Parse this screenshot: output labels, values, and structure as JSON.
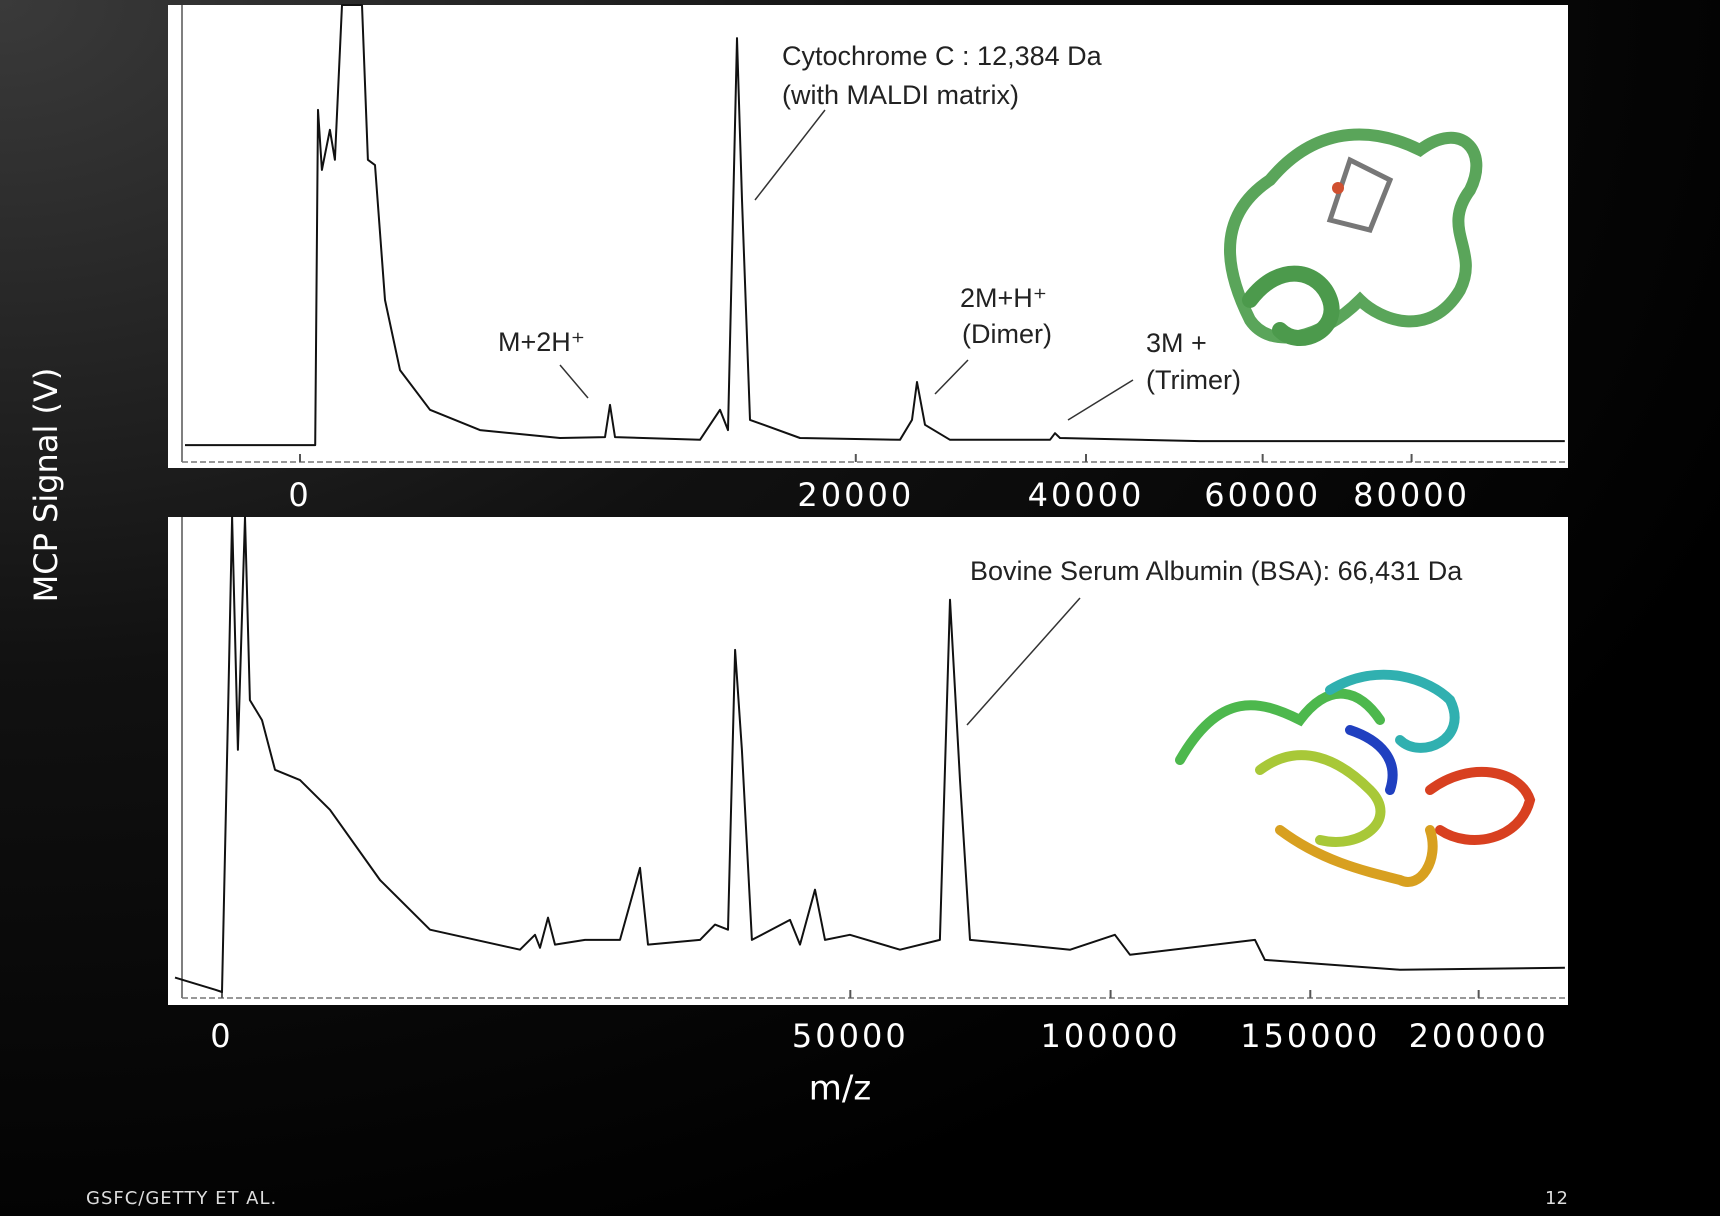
{
  "slide": {
    "ylabel": "MCP Signal (V)",
    "xlabel": "m/z",
    "footer": "GSFC/GETTY ET AL.",
    "page_number": "12"
  },
  "chart_data": [
    {
      "type": "line",
      "xscale": "sqrt",
      "color": "#111111",
      "annotations": [
        "Cytochrome C :  12,384 Da",
        "(with MALDI matrix)",
        "M+2H⁺",
        "2M+H⁺",
        "(Dimer)",
        "3M +",
        "(Trimer)"
      ],
      "xlim": [
        -1128,
        104100
      ],
      "xticks": [
        0,
        20000,
        40000,
        60000,
        80000
      ],
      "ylim": [
        -0.05,
        1
      ],
      "x": [
        -856,
        0,
        15,
        21,
        31,
        58,
        79,
        114,
        196,
        249,
        299,
        364,
        468,
        647,
        1094,
        2098,
        4377,
        6022,
        6222,
        6424,
        10359,
        11421,
        11861,
        12362,
        12647,
        13110,
        16187,
        23309,
        24250,
        24652,
        25290,
        27355,
        36418,
        36904,
        37397,
        52440,
        103575
      ],
      "values": [
        0.002,
        0.002,
        0.002,
        0.762,
        0.626,
        0.717,
        0.649,
        1.0,
        1.0,
        1.0,
        0.649,
        0.637,
        0.331,
        0.172,
        0.082,
        0.036,
        0.018,
        0.02,
        0.093,
        0.02,
        0.014,
        0.082,
        0.036,
        0.925,
        0.558,
        0.059,
        0.018,
        0.014,
        0.059,
        0.145,
        0.048,
        0.014,
        0.014,
        0.029,
        0.018,
        0.011,
        0.011
      ]
    },
    {
      "type": "line",
      "xscale": "sqrt",
      "color": "#111111",
      "annotations": [
        "Bovine Serum Albumin (BSA): 66,431 Da"
      ],
      "xlim": [
        -369,
        229450
      ],
      "xticks": [
        0,
        50000,
        100000,
        150000,
        200000
      ],
      "ylim": [
        -0.05,
        1
      ],
      "x": [
        -280,
        -6,
        0,
        5,
        13,
        32,
        67,
        99,
        203,
        356,
        771,
        1477,
        3162,
        5479,
        11247,
        12408,
        12806,
        13459,
        14043,
        16690,
        20061,
        22129,
        22984,
        28935,
        30780,
        32422,
        33345,
        34240,
        35570,
        40857,
        42315,
        44540,
        46045,
        49936,
        58218,
        65266,
        67118,
        68972,
        70870,
        80577,
        91117,
        100970,
        104425,
        135150,
        137760,
        175700,
        228400
      ],
      "values": [
        0.009,
        -0.017,
        -0.022,
        0.606,
        1.0,
        0.499,
        1.0,
        0.606,
        0.563,
        0.456,
        0.434,
        0.37,
        0.219,
        0.112,
        0.069,
        0.101,
        0.073,
        0.138,
        0.08,
        0.09,
        0.09,
        0.245,
        0.08,
        0.09,
        0.123,
        0.112,
        0.714,
        0.499,
        0.09,
        0.133,
        0.08,
        0.198,
        0.09,
        0.101,
        0.069,
        0.09,
        0.822,
        0.434,
        0.09,
        0.08,
        0.069,
        0.101,
        0.058,
        0.09,
        0.047,
        0.026,
        0.03
      ]
    }
  ]
}
